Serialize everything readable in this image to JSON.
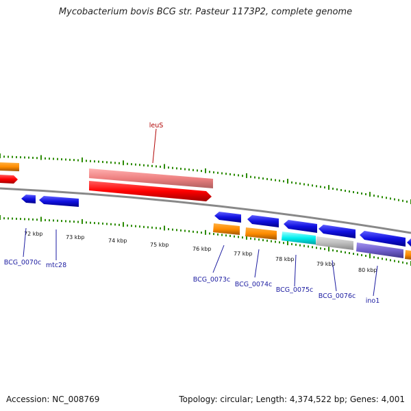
{
  "title": "Mycobacterium bovis BCG str. Pasteur 1173P2, complete genome",
  "footer": {
    "accession": "Accession: NC_008769",
    "summary": "Topology: circular; Length: 4,374,522 bp; Genes: 4,001"
  },
  "colors": {
    "backbone": "#888888",
    "tick_major": "#2a8a00",
    "tick_minor": "#2a8a00",
    "label_blue": "#1a1aa0",
    "label_red": "#b00000"
  },
  "kbp_ticks": [
    "72 kbp",
    "73 kbp",
    "74 kbp",
    "75 kbp",
    "76 kbp",
    "77 kbp",
    "78 kbp",
    "79 kbp",
    "80 kbp"
  ],
  "genes": [
    {
      "label": "BCG_0070c",
      "color": "#1010e0",
      "strand": "reverse"
    },
    {
      "label": "mtc28",
      "color": "#1010e0",
      "strand": "reverse"
    },
    {
      "label": "leuS",
      "color": "#ff0000",
      "strand": "forward"
    },
    {
      "label": "BCG_0073c",
      "color": "#1010e0",
      "strand": "reverse"
    },
    {
      "label": "BCG_0074c",
      "color": "#1010e0",
      "strand": "reverse"
    },
    {
      "label": "BCG_0075c",
      "color": "#1010e0",
      "strand": "reverse"
    },
    {
      "label": "BCG_0076c",
      "color": "#1010e0",
      "strand": "reverse"
    },
    {
      "label": "ino1",
      "color": "#1010e0",
      "strand": "reverse"
    }
  ]
}
